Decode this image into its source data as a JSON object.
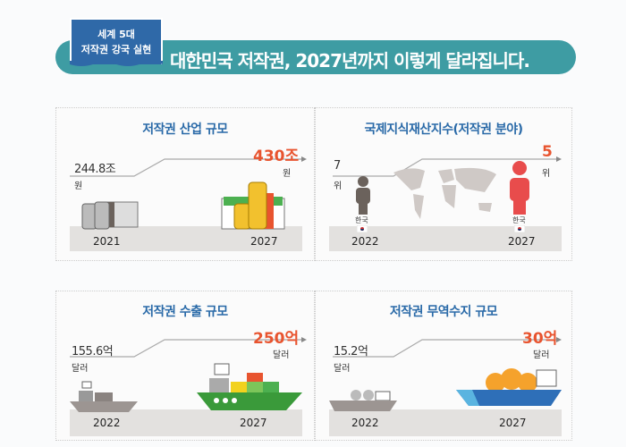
{
  "header": {
    "badge_line1": "세계 5대",
    "badge_line2": "저작권 강국 실현",
    "title": "대한민국 저작권, 2027년까지 이렇게 달라집니다."
  },
  "colors": {
    "banner": "#3e9ca3",
    "badge": "#2f69a8",
    "title_blue": "#2a6aa8",
    "highlight_red": "#e8542f"
  },
  "panels": [
    {
      "title": "저작권 산업 규모",
      "from_value": "244.8조",
      "from_unit": "원",
      "to_value": "430조",
      "to_unit": "원",
      "from_year": "2021",
      "to_year": "2027",
      "icons": [
        "coins-cash-icon",
        "coins-cash-icon"
      ]
    },
    {
      "title": "국제지식재산지수(저작권 분야)",
      "from_value": "7",
      "from_unit": "위",
      "to_value": "5",
      "to_unit": "위",
      "from_year": "2022",
      "to_year": "2027",
      "country_label": "한국",
      "icons": [
        "person-icon",
        "world-map-icon",
        "korea-flag-icon"
      ]
    },
    {
      "title": "저작권 수출 규모",
      "from_value": "155.6억",
      "from_unit": "달러",
      "to_value": "250억",
      "to_unit": "달러",
      "from_year": "2022",
      "to_year": "2027",
      "icons": [
        "cargo-ship-icon"
      ]
    },
    {
      "title": "저작권 무역수지 규모",
      "from_value": "15.2억",
      "from_unit": "달러",
      "to_value": "30억",
      "to_unit": "달러",
      "from_year": "2022",
      "to_year": "2027",
      "icons": [
        "money-bag-ship-icon"
      ]
    }
  ]
}
